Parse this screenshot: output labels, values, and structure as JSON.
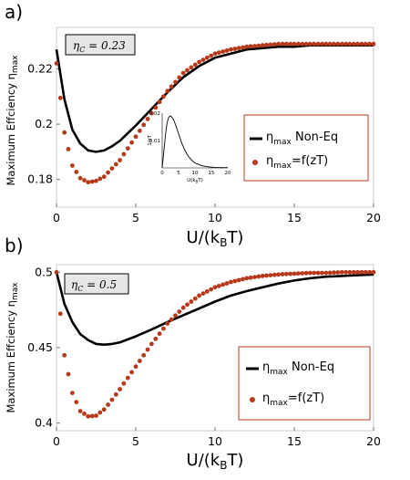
{
  "chart_data": [
    {
      "panel_label": "a)",
      "type": "scatter",
      "ylabel_main": "Maximum Effciency η",
      "ylabel_sub": "max",
      "xlabel_main": "U/(k",
      "xlabel_sub": "B",
      "xlabel_tail": "T)",
      "xlim": [
        0,
        20
      ],
      "ylim": [
        0.17,
        0.235
      ],
      "xticks": [
        0,
        5,
        10,
        15,
        20
      ],
      "xtick_labels": [
        "0",
        "5",
        "10",
        "15",
        "20"
      ],
      "yticks": [
        0.18,
        0.2,
        0.22
      ],
      "ytick_labels": [
        "0.18",
        "0.2",
        "0.22"
      ],
      "eta_c_label": "η_C = 0.23",
      "eta_c_text_main": "η",
      "eta_c_text_sub": "C",
      "eta_c_text_tail": " = 0.23",
      "legend": {
        "line_label_main": "η",
        "line_label_sub": "max",
        "line_label_tail": " Non-Eq",
        "dots_label_main": "η",
        "dots_label_sub": "max",
        "dots_label_tail": "=f(zT)",
        "placement": "middle-right"
      },
      "series": [
        {
          "kind": "line",
          "color": "#000000",
          "x": [
            0,
            0.5,
            1,
            1.5,
            2,
            2.5,
            3,
            3.5,
            4,
            5,
            6,
            7,
            8,
            9,
            10,
            11,
            12,
            13,
            14,
            15,
            16,
            17,
            18,
            19,
            20
          ],
          "y": [
            0.227,
            0.209,
            0.198,
            0.193,
            0.1905,
            0.19,
            0.1905,
            0.192,
            0.194,
            0.1995,
            0.2055,
            0.2115,
            0.217,
            0.221,
            0.224,
            0.2255,
            0.227,
            0.2275,
            0.228,
            0.228,
            0.2285,
            0.2285,
            0.2285,
            0.2285,
            0.2285
          ]
        },
        {
          "kind": "dots",
          "color": "#b5391a",
          "x": [
            0,
            0.5,
            1,
            1.5,
            2,
            2.5,
            3,
            3.5,
            4,
            5,
            6,
            7,
            8,
            9,
            10,
            11,
            12,
            13,
            14,
            15,
            16,
            17,
            18,
            19,
            20
          ],
          "y": [
            0.222,
            0.197,
            0.185,
            0.1805,
            0.179,
            0.1795,
            0.181,
            0.184,
            0.187,
            0.1955,
            0.204,
            0.212,
            0.2185,
            0.2225,
            0.2255,
            0.227,
            0.228,
            0.2285,
            0.229,
            0.229,
            0.229,
            0.229,
            0.229,
            0.229,
            0.229
          ]
        }
      ],
      "inset": {
        "ylabel": "1/zT",
        "xlabel": "U(k_BT)",
        "xlabel_main": "U(k",
        "xlabel_sub": "B",
        "xlabel_tail": "T)",
        "xticks": [
          0,
          5,
          10,
          15,
          20
        ],
        "xtick_labels": [
          "0",
          "5",
          "10",
          "15",
          "20"
        ],
        "yticks": [
          0.01,
          0.02
        ],
        "ytick_labels": [
          "0.01",
          "0.02"
        ],
        "xlim": [
          0,
          20
        ],
        "ylim": [
          0,
          0.02
        ],
        "x": [
          0,
          0.5,
          1,
          1.5,
          2,
          2.5,
          3,
          3.5,
          4,
          5,
          6,
          7,
          8,
          9,
          10,
          12,
          14,
          16,
          18,
          20
        ],
        "y": [
          0.0,
          0.006,
          0.012,
          0.0165,
          0.0185,
          0.019,
          0.0185,
          0.0175,
          0.016,
          0.0125,
          0.009,
          0.0062,
          0.0042,
          0.0028,
          0.0018,
          0.0008,
          0.0004,
          0.0002,
          0.0001,
          0.0001
        ]
      }
    },
    {
      "panel_label": "b)",
      "type": "scatter",
      "ylabel_main": "Maximum Effciency η",
      "ylabel_sub": "max",
      "xlabel_main": "U/(k",
      "xlabel_sub": "B",
      "xlabel_tail": "T)",
      "xlim": [
        0,
        20
      ],
      "ylim": [
        0.395,
        0.505
      ],
      "xticks": [
        0,
        5,
        10,
        15,
        20
      ],
      "xtick_labels": [
        "0",
        "5",
        "10",
        "15",
        "20"
      ],
      "yticks": [
        0.4,
        0.45,
        0.5
      ],
      "ytick_labels": [
        "0.4",
        "0.45",
        "0.5"
      ],
      "eta_c_label": "η_C = 0.5",
      "eta_c_text_main": "η",
      "eta_c_text_sub": "C",
      "eta_c_text_tail": " = 0.5",
      "legend": {
        "line_label_main": "η",
        "line_label_sub": "max",
        "line_label_tail": " Non-Eq",
        "dots_label_main": "η",
        "dots_label_sub": "max",
        "dots_label_tail": "=f(zT)",
        "placement": "bottom-right"
      },
      "series": [
        {
          "kind": "line",
          "color": "#000000",
          "x": [
            0,
            0.5,
            1,
            1.5,
            2,
            2.5,
            3,
            3.5,
            4,
            5,
            6,
            7,
            8,
            9,
            10,
            11,
            12,
            13,
            14,
            15,
            16,
            17,
            18,
            19,
            20
          ],
          "y": [
            0.5,
            0.479,
            0.467,
            0.459,
            0.455,
            0.4525,
            0.452,
            0.4525,
            0.4535,
            0.4575,
            0.462,
            0.467,
            0.4715,
            0.476,
            0.4805,
            0.4845,
            0.4875,
            0.49,
            0.4925,
            0.4945,
            0.496,
            0.497,
            0.4975,
            0.498,
            0.4985
          ]
        },
        {
          "kind": "dots",
          "color": "#b5391a",
          "x": [
            0,
            0.5,
            1,
            1.5,
            2,
            2.5,
            3,
            3.5,
            4,
            5,
            6,
            7,
            8,
            9,
            10,
            11,
            12,
            13,
            14,
            15,
            16,
            17,
            18,
            19,
            20
          ],
          "y": [
            0.5,
            0.445,
            0.42,
            0.408,
            0.4045,
            0.405,
            0.409,
            0.4155,
            0.4225,
            0.4375,
            0.4525,
            0.466,
            0.4765,
            0.4845,
            0.49,
            0.4935,
            0.496,
            0.4975,
            0.4985,
            0.499,
            0.4995,
            0.4995,
            0.5,
            0.5,
            0.5
          ]
        }
      ]
    }
  ]
}
